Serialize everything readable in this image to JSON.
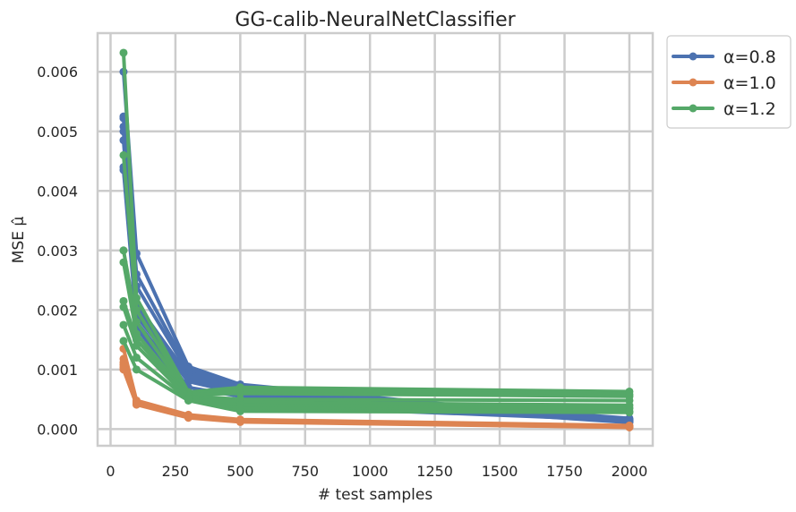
{
  "chart_data": {
    "type": "line",
    "title": "GG-calib-NeuralNetClassifier",
    "xlabel": "# test samples",
    "ylabel": "MSE μ̂",
    "xlim": [
      -50,
      2090
    ],
    "ylim": [
      -0.00028,
      0.00665
    ],
    "x_ticks": [
      0,
      250,
      500,
      750,
      1000,
      1250,
      1500,
      1750,
      2000
    ],
    "x_tick_labels": [
      "0",
      "250",
      "500",
      "750",
      "1000",
      "1250",
      "1500",
      "1750",
      "2000"
    ],
    "y_ticks": [
      0,
      0.001,
      0.002,
      0.003,
      0.004,
      0.005,
      0.006
    ],
    "y_tick_labels": [
      "0.000",
      "0.001",
      "0.002",
      "0.003",
      "0.004",
      "0.005",
      "0.006"
    ],
    "grid": true,
    "legend_position": "outside-top-right",
    "x": [
      50,
      100,
      300,
      500,
      2000
    ],
    "series": [
      {
        "name": "α=0.8",
        "color": "#4c72b0",
        "runs": [
          [
            0.006,
            0.00295,
            0.00105,
            0.00075,
            0.00012
          ],
          [
            0.00525,
            0.0026,
            0.001,
            0.00072,
            0.00014
          ],
          [
            0.00522,
            0.0024,
            0.00095,
            0.0007,
            0.00016
          ],
          [
            0.00508,
            0.0021,
            0.0009,
            0.00066,
            0.00018
          ],
          [
            0.00485,
            0.002,
            0.00085,
            0.00062,
            0.00015
          ],
          [
            0.0044,
            0.0019,
            0.0008,
            0.0006,
            0.00013
          ],
          [
            0.00435,
            0.0018,
            0.0007,
            0.00055,
            0.00011
          ],
          [
            0.005,
            0.0017,
            0.0006,
            0.0004,
            0.00015
          ]
        ]
      },
      {
        "name": "α=1.0",
        "color": "#dd8452",
        "runs": [
          [
            0.00135,
            0.00048,
            0.00024,
            0.00016,
            6e-05
          ],
          [
            0.00118,
            0.00046,
            0.00023,
            0.00015,
            5e-05
          ],
          [
            0.00112,
            0.00044,
            0.00022,
            0.00014,
            4e-05
          ],
          [
            0.00108,
            0.00043,
            0.00021,
            0.00013,
            4e-05
          ],
          [
            0.00104,
            0.00042,
            0.0002,
            0.00013,
            3e-05
          ],
          [
            0.001,
            0.00041,
            0.00019,
            0.00012,
            3e-05
          ]
        ]
      },
      {
        "name": "α=1.2",
        "color": "#55a868",
        "runs": [
          [
            0.00632,
            0.0022,
            0.00062,
            0.0007,
            0.00063
          ],
          [
            0.0046,
            0.002,
            0.0006,
            0.00065,
            0.00058
          ],
          [
            0.003,
            0.0018,
            0.00058,
            0.0006,
            0.00055
          ],
          [
            0.0028,
            0.0016,
            0.00056,
            0.0005,
            0.00048
          ],
          [
            0.00215,
            0.0015,
            0.00055,
            0.00045,
            0.0004
          ],
          [
            0.00205,
            0.0014,
            0.00052,
            0.0004,
            0.00035
          ],
          [
            0.00175,
            0.0012,
            0.0005,
            0.00035,
            0.0003
          ],
          [
            0.00148,
            0.001,
            0.00048,
            0.0003,
            0.00028
          ]
        ]
      }
    ]
  }
}
